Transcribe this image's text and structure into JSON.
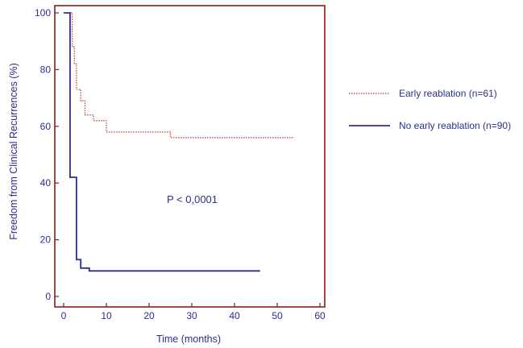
{
  "chart_data": {
    "type": "line",
    "step": true,
    "xlabel": "Time (months)",
    "ylabel": "Freedom from Clinical Recurrences (%)",
    "xlim": [
      0,
      60
    ],
    "ylim": [
      0,
      100
    ],
    "xticks": [
      0,
      10,
      20,
      30,
      40,
      50,
      60
    ],
    "yticks": [
      0,
      20,
      40,
      60,
      80,
      100
    ],
    "grid": false,
    "legend": "right",
    "annotation": "P < 0,0001",
    "colors": {
      "axes_frame": "#8b1a1a",
      "axis_text": "#2b2f8e"
    },
    "series": [
      {
        "name": "Early reablation (n=61)",
        "color": "#c0392b",
        "line_style": "dotted",
        "x": [
          0,
          2,
          2.5,
          3,
          4,
          5,
          7,
          10,
          12,
          25,
          54
        ],
        "y": [
          100,
          88,
          82,
          73,
          69,
          64,
          62,
          58,
          58,
          56,
          56
        ]
      },
      {
        "name": "No early reablation (n=90)",
        "color": "#2b2f8e",
        "line_style": "solid",
        "x": [
          0,
          1.5,
          3,
          4,
          6,
          46
        ],
        "y": [
          100,
          42,
          13,
          10,
          9,
          9
        ]
      }
    ]
  }
}
